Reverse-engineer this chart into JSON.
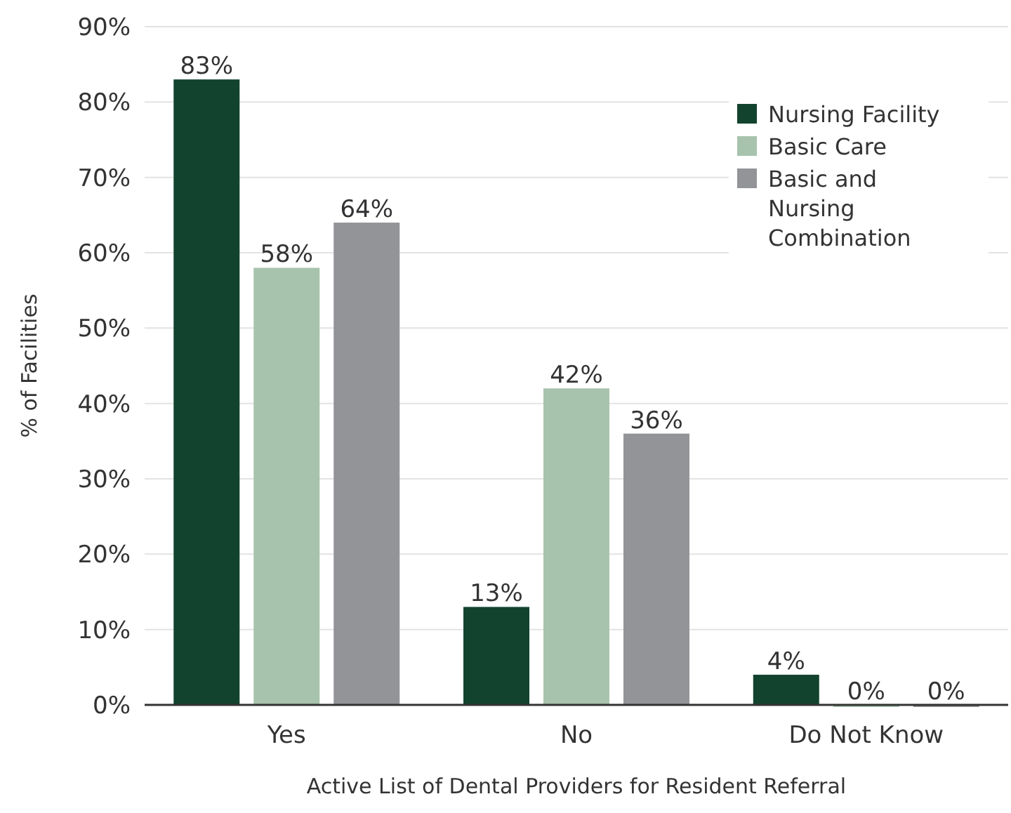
{
  "chart_data": {
    "type": "bar",
    "xlabel": "Active List of Dental Providers for Resident Referral",
    "ylabel": "% of Facilities",
    "categories": [
      "Yes",
      "No",
      "Do Not Know"
    ],
    "series": [
      {
        "name": "Nursing Facility",
        "color": "#12432f",
        "values": [
          83,
          13,
          4
        ],
        "value_labels": [
          "83%",
          "13%",
          "4%"
        ]
      },
      {
        "name": "Basic Care",
        "color": "#a8c3ad",
        "values": [
          58,
          42,
          0
        ],
        "value_labels": [
          "58%",
          "42%",
          "0%"
        ]
      },
      {
        "name": "Basic and Nursing Combination",
        "color": "#929497",
        "values": [
          64,
          36,
          0
        ],
        "value_labels": [
          "64%",
          "36%",
          "0%"
        ]
      }
    ],
    "ylim": [
      0,
      90
    ],
    "yticks": [
      {
        "value": 0,
        "label": "0%"
      },
      {
        "value": 10,
        "label": "10%"
      },
      {
        "value": 20,
        "label": "20%"
      },
      {
        "value": 30,
        "label": "30%"
      },
      {
        "value": 40,
        "label": "40%"
      },
      {
        "value": 50,
        "label": "50%"
      },
      {
        "value": 60,
        "label": "60%"
      },
      {
        "value": 70,
        "label": "70%"
      },
      {
        "value": 80,
        "label": "80%"
      },
      {
        "value": 90,
        "label": "90%"
      }
    ],
    "grid": "y",
    "legend": "top right"
  }
}
